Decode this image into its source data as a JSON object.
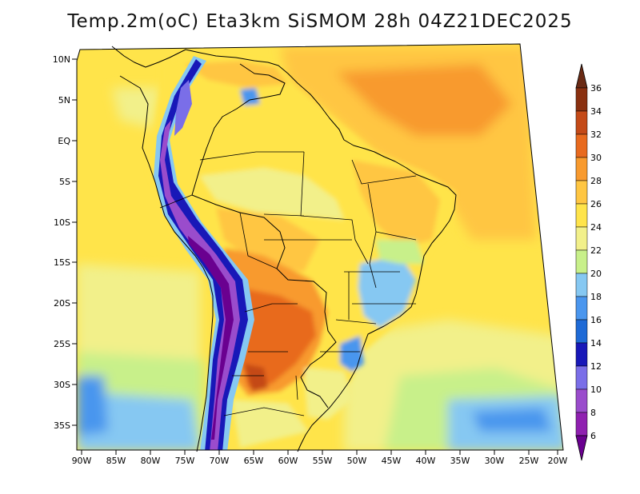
{
  "title": "Temp.2m(oC) Eta3km SiSMOM 28h 04Z21DEC2025",
  "map": {
    "variable": "Temp.2m",
    "units": "oC",
    "model": "Eta3km SiSMOM",
    "forecast_hour": "28h",
    "valid_time": "04Z21DEC2025",
    "lat_labels": [
      "10N",
      "5N",
      "EQ",
      "5S",
      "10S",
      "15S",
      "20S",
      "25S",
      "30S",
      "35S"
    ],
    "lon_labels": [
      "90W",
      "85W",
      "80W",
      "75W",
      "70W",
      "65W",
      "60W",
      "55W",
      "50W",
      "45W",
      "40W",
      "35W",
      "30W",
      "25W",
      "20W"
    ]
  },
  "colorbar": {
    "labels": [
      "36",
      "34",
      "32",
      "30",
      "28",
      "26",
      "24",
      "22",
      "20",
      "18",
      "16",
      "14",
      "12",
      "10",
      "8",
      "6"
    ],
    "colors": {
      "lt6": "#6a0090",
      "6": "#8f20b0",
      "8": "#9a4ccc",
      "10": "#7a6ee8",
      "12": "#1818b8",
      "14": "#1e6ad6",
      "16": "#4a96ee",
      "18": "#86c8f2",
      "20": "#c8f08a",
      "22": "#f2f08a",
      "24": "#ffe44a",
      "26": "#ffc642",
      "28": "#f89a2e",
      "30": "#e86a1e",
      "32": "#c44a18",
      "34": "#8a3010",
      "gt36": "#6a2a14"
    }
  }
}
